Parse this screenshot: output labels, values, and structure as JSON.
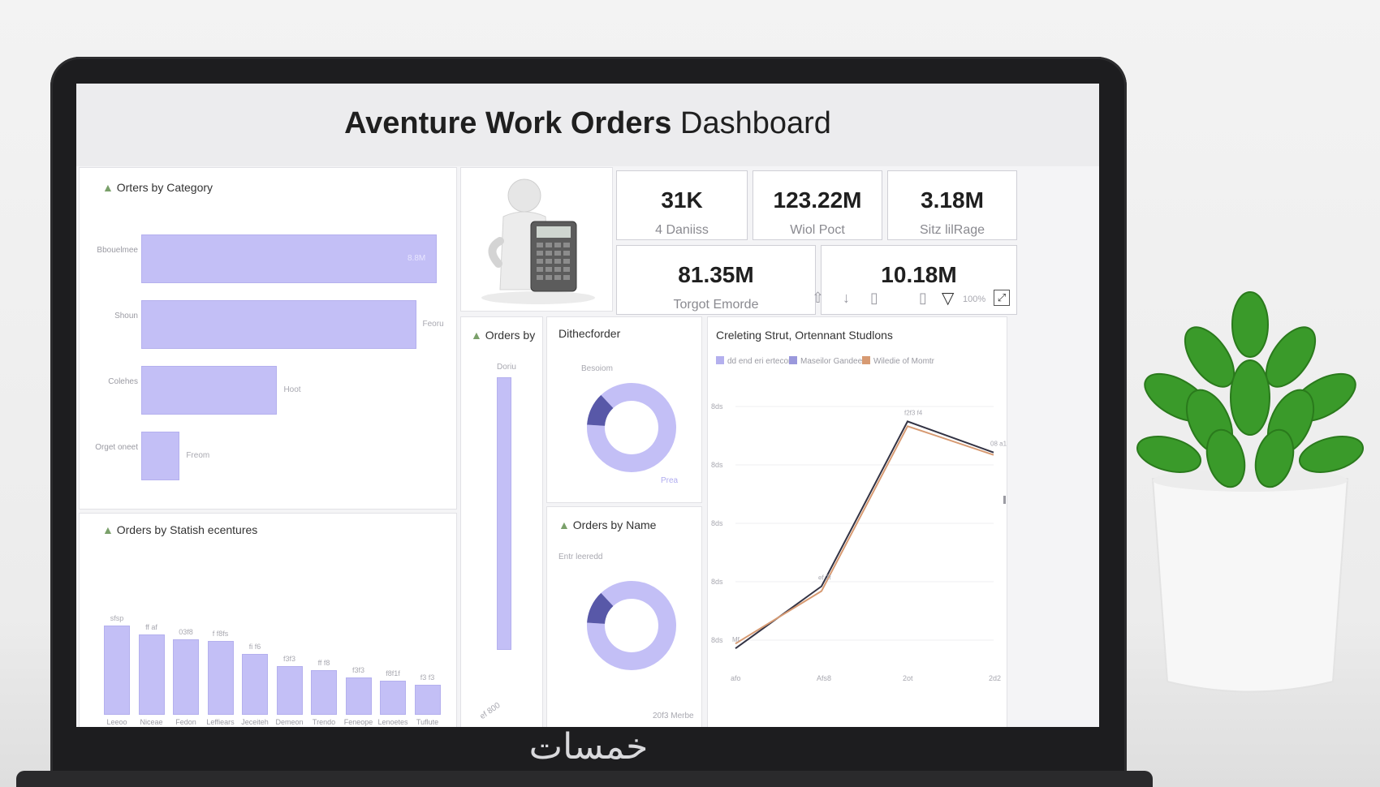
{
  "dashboard": {
    "title_bold": "Aventure Work Orders",
    "title_rest": " Dashboard"
  },
  "kpis": [
    {
      "value": "31K",
      "label": "4 Daniiss"
    },
    {
      "value": "123.22M",
      "label": "Wiol Poct"
    },
    {
      "value": "3.18M",
      "label": "Sitz lilRage"
    },
    {
      "value": "81.35M",
      "label": "Torgot Emorde"
    },
    {
      "value": "10.18M",
      "label": ""
    }
  ],
  "toolbar": {
    "icons": [
      "upload-icon",
      "arrow-down-icon",
      "bar-icon",
      "filter-icon",
      "focus-icon"
    ],
    "zoom_label": "100%"
  },
  "colors": {
    "bar": "#c3bff6",
    "donut_main": "#c3bff6",
    "donut_accent": "#5858a8",
    "line_dark": "#333344",
    "line_orange": "#d79a72"
  },
  "chart_data": [
    {
      "type": "bar",
      "orientation": "horizontal",
      "title": "Orters by Category",
      "categories": [
        "Bbouelmee",
        "Shoun",
        "Colehes",
        "Orget oneet"
      ],
      "values": [
        100,
        93,
        46,
        13
      ],
      "value_labels": [
        "8.8M",
        "Feoru",
        "Hoot",
        "Freom"
      ]
    },
    {
      "type": "bar",
      "title": "Orders by Statish ecentures",
      "categories": [
        "Leeoo",
        "Niceae",
        "Fedon",
        "Leffiears",
        "Jeceiteh",
        "Demeon",
        "Trendo",
        "Feneope",
        "Lenoetes",
        "Tuflute"
      ],
      "values": [
        100,
        90,
        85,
        83,
        68,
        55,
        50,
        42,
        38,
        34
      ],
      "value_labels": [
        "sfsp",
        "ff af",
        "03f8",
        "f f8fs",
        "fi f6",
        "f3f3",
        "ff f8",
        "f3f3",
        "f8f1f",
        "f3 f3"
      ]
    },
    {
      "type": "bar",
      "title": "Orders by",
      "categories": [
        ""
      ],
      "values": [
        100
      ],
      "value_labels": [
        "Doriu"
      ],
      "x_label": "ef 800"
    },
    {
      "type": "pie",
      "title": "Dithecforder",
      "subtitle": "Besoiom",
      "values": [
        88,
        12
      ],
      "value_label": "Prea"
    },
    {
      "type": "pie",
      "title": "Orders by Name",
      "subtitle": "Entr leeredd",
      "values": [
        88,
        12
      ],
      "value_label": "20f3 Merbe"
    },
    {
      "type": "line",
      "title": "Creleting Strut, Ortennant Studlons",
      "legend": [
        "dd end eri ertecorc",
        "Maseilor Gandee",
        "Wiledie of Momtr"
      ],
      "y_ticks": [
        "8ds",
        "8ds",
        "8ds",
        "8ds",
        "8ds"
      ],
      "x_ticks": [
        "afo",
        "Afs8",
        "2ot",
        "2d2"
      ],
      "series": [
        {
          "name": "Maseilor Gandee",
          "x": [
            0,
            1,
            2,
            3
          ],
          "y": [
            4,
            30,
            99,
            86
          ]
        },
        {
          "name": "Wiledie of Momtr",
          "x": [
            0,
            1,
            2,
            3
          ],
          "y": [
            6,
            28,
            97,
            85
          ]
        }
      ],
      "point_labels": [
        "Mf",
        "ef 2f",
        "f2f3 f4",
        "08 a1"
      ],
      "ylim": [
        0,
        110
      ]
    }
  ]
}
